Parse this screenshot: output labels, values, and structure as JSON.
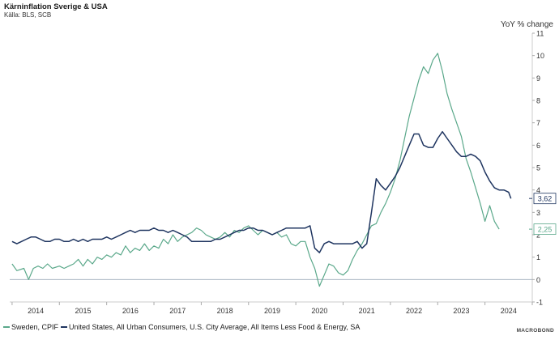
{
  "header": {
    "title": "Kärninflation Sverige & USA",
    "source": "Källa: BLS, SCB",
    "unit": "YoY % change"
  },
  "logo_text": "MACROBOND",
  "colors": {
    "sweden": "#5aa88a",
    "usa": "#1f3560",
    "zero_line": "#9aa8b8",
    "axis": "#cccccc"
  },
  "chart_data": {
    "type": "line",
    "title": "Kärninflation Sverige & USA",
    "ylabel": "YoY % change",
    "ylim": [
      -1,
      11
    ],
    "yticks": [
      -1,
      0,
      1,
      2,
      3,
      4,
      5,
      6,
      7,
      8,
      9,
      10,
      11
    ],
    "xlim": [
      2013.45,
      2024.5
    ],
    "xticks": [
      2014,
      2015,
      2016,
      2017,
      2018,
      2019,
      2020,
      2021,
      2022,
      2023,
      2024
    ],
    "legend_position": "bottom",
    "series": [
      {
        "name": "Sweden, CPIF",
        "color": "#5aa88a",
        "end_label": "2,25",
        "x": [
          2013.5,
          2013.6,
          2013.75,
          2013.85,
          2013.95,
          2014.05,
          2014.15,
          2014.25,
          2014.35,
          2014.5,
          2014.6,
          2014.7,
          2014.8,
          2014.9,
          2015.0,
          2015.1,
          2015.2,
          2015.3,
          2015.4,
          2015.5,
          2015.6,
          2015.7,
          2015.8,
          2015.9,
          2016.0,
          2016.1,
          2016.2,
          2016.3,
          2016.4,
          2016.5,
          2016.6,
          2016.7,
          2016.8,
          2016.9,
          2017.0,
          2017.1,
          2017.2,
          2017.3,
          2017.4,
          2017.5,
          2017.6,
          2017.7,
          2017.8,
          2017.9,
          2018.0,
          2018.1,
          2018.2,
          2018.3,
          2018.4,
          2018.5,
          2018.6,
          2018.7,
          2018.8,
          2018.9,
          2019.0,
          2019.1,
          2019.2,
          2019.3,
          2019.4,
          2019.5,
          2019.6,
          2019.7,
          2019.8,
          2019.9,
          2020.0,
          2020.1,
          2020.2,
          2020.3,
          2020.4,
          2020.5,
          2020.6,
          2020.7,
          2020.8,
          2020.9,
          2021.0,
          2021.1,
          2021.2,
          2021.3,
          2021.4,
          2021.5,
          2021.6,
          2021.7,
          2021.8,
          2021.9,
          2022.0,
          2022.1,
          2022.2,
          2022.3,
          2022.4,
          2022.5,
          2022.6,
          2022.7,
          2022.8,
          2022.9,
          2023.0,
          2023.1,
          2023.2,
          2023.3,
          2023.4,
          2023.5,
          2023.6,
          2023.7,
          2023.8
        ],
        "values": [
          0.7,
          0.4,
          0.5,
          0.0,
          0.5,
          0.6,
          0.5,
          0.7,
          0.5,
          0.6,
          0.5,
          0.6,
          0.7,
          0.9,
          0.6,
          0.9,
          0.7,
          1.0,
          0.9,
          1.1,
          1.0,
          1.2,
          1.1,
          1.5,
          1.2,
          1.4,
          1.3,
          1.6,
          1.3,
          1.5,
          1.4,
          1.8,
          1.6,
          2.0,
          1.7,
          1.9,
          2.0,
          2.1,
          2.3,
          2.2,
          2.0,
          1.9,
          1.8,
          1.9,
          2.1,
          1.9,
          2.2,
          2.1,
          2.3,
          2.4,
          2.2,
          2.0,
          2.2,
          2.1,
          2.0,
          2.1,
          1.9,
          2.0,
          1.6,
          1.5,
          1.7,
          1.7,
          1.0,
          0.5,
          -0.3,
          0.2,
          0.7,
          0.6,
          0.3,
          0.2,
          0.4,
          0.9,
          1.3,
          1.6,
          2.0,
          2.4,
          2.5,
          3.0,
          3.4,
          3.9,
          4.5,
          5.3,
          6.3,
          7.3,
          8.1,
          8.9,
          9.5,
          9.2,
          9.8,
          10.1,
          9.3,
          8.3,
          7.6,
          7.0,
          6.4,
          5.4,
          4.8,
          4.1,
          3.4,
          2.6,
          3.3,
          2.6,
          2.25
        ]
      },
      {
        "name": "United States, All Urban Consumers, U.S. City Average, All Items Less Food & Energy, SA",
        "color": "#1f3560",
        "end_label": "3,62",
        "x": [
          2013.5,
          2013.6,
          2013.7,
          2013.8,
          2013.9,
          2014.0,
          2014.1,
          2014.2,
          2014.3,
          2014.4,
          2014.5,
          2014.6,
          2014.7,
          2014.8,
          2014.9,
          2015.0,
          2015.1,
          2015.2,
          2015.3,
          2015.4,
          2015.5,
          2015.6,
          2015.7,
          2015.8,
          2015.9,
          2016.0,
          2016.1,
          2016.2,
          2016.3,
          2016.4,
          2016.5,
          2016.6,
          2016.7,
          2016.8,
          2016.9,
          2017.0,
          2017.1,
          2017.2,
          2017.3,
          2017.4,
          2017.5,
          2017.6,
          2017.7,
          2017.8,
          2017.9,
          2018.0,
          2018.1,
          2018.2,
          2018.3,
          2018.4,
          2018.5,
          2018.6,
          2018.7,
          2018.8,
          2018.9,
          2019.0,
          2019.1,
          2019.2,
          2019.3,
          2019.4,
          2019.5,
          2019.6,
          2019.7,
          2019.8,
          2019.9,
          2020.0,
          2020.1,
          2020.2,
          2020.3,
          2020.4,
          2020.5,
          2020.6,
          2020.7,
          2020.8,
          2020.9,
          2021.0,
          2021.1,
          2021.2,
          2021.3,
          2021.4,
          2021.5,
          2021.6,
          2021.7,
          2021.8,
          2021.9,
          2022.0,
          2022.1,
          2022.2,
          2022.3,
          2022.4,
          2022.5,
          2022.6,
          2022.7,
          2022.8,
          2022.9,
          2023.0,
          2023.1,
          2023.2,
          2023.3,
          2023.4,
          2023.5,
          2023.6,
          2023.7,
          2023.8,
          2023.9,
          2024.0,
          2024.05
        ],
        "values": [
          1.7,
          1.6,
          1.7,
          1.8,
          1.9,
          1.9,
          1.8,
          1.7,
          1.7,
          1.8,
          1.8,
          1.7,
          1.7,
          1.8,
          1.7,
          1.8,
          1.7,
          1.8,
          1.8,
          1.8,
          1.9,
          1.8,
          1.9,
          2.0,
          2.1,
          2.2,
          2.1,
          2.2,
          2.2,
          2.2,
          2.3,
          2.2,
          2.2,
          2.1,
          2.2,
          2.1,
          2.0,
          1.9,
          1.7,
          1.7,
          1.7,
          1.7,
          1.7,
          1.8,
          1.8,
          1.9,
          2.0,
          2.1,
          2.2,
          2.2,
          2.3,
          2.3,
          2.2,
          2.2,
          2.1,
          2.0,
          2.1,
          2.2,
          2.3,
          2.3,
          2.3,
          2.3,
          2.3,
          2.4,
          1.4,
          1.2,
          1.6,
          1.7,
          1.6,
          1.6,
          1.6,
          1.6,
          1.6,
          1.7,
          1.4,
          1.6,
          3.0,
          4.5,
          4.2,
          4.0,
          4.3,
          4.6,
          5.0,
          5.5,
          6.0,
          6.5,
          6.5,
          6.0,
          5.9,
          5.9,
          6.3,
          6.6,
          6.3,
          6.0,
          5.7,
          5.5,
          5.5,
          5.6,
          5.5,
          5.3,
          4.8,
          4.4,
          4.1,
          4.0,
          4.0,
          3.9,
          3.62
        ]
      }
    ]
  }
}
